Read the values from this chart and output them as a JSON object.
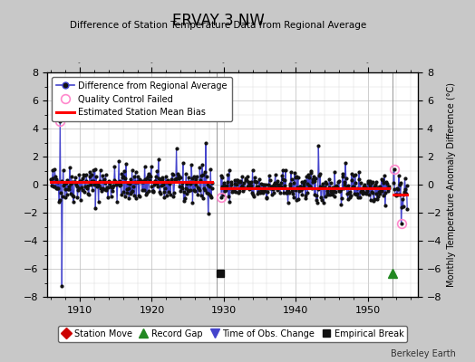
{
  "title": "ERVAY 3 NW",
  "subtitle": "Difference of Station Temperature Data from Regional Average",
  "ylabel": "Monthly Temperature Anomaly Difference (°C)",
  "ylim": [
    -8,
    8
  ],
  "xlim": [
    1905.5,
    1957
  ],
  "xticks": [
    1910,
    1920,
    1930,
    1940,
    1950
  ],
  "yticks": [
    -8,
    -6,
    -4,
    -2,
    0,
    2,
    4,
    6,
    8
  ],
  "bg_color": "#c8c8c8",
  "plot_bg_color": "#ffffff",
  "line_color": "#4444cc",
  "dot_color": "#111111",
  "bias_color": "#ff0000",
  "qc_color": "#ff88cc",
  "grid_color": "#bbbbbb",
  "footer": "Berkeley Earth",
  "segment1_start": 1906.0,
  "segment1_end": 1928.42,
  "segment2_start": 1929.58,
  "segment2_end": 1953.0,
  "segment3_start": 1953.58,
  "segment3_end": 1955.5,
  "bias1": 0.18,
  "bias2": -0.28,
  "bias3": -0.72,
  "gap1_x": 1929.0,
  "gap2_x": 1953.5,
  "empirical_break_x": 1929.5,
  "record_gap_x": 1953.5,
  "marker_event_y": -6.35
}
